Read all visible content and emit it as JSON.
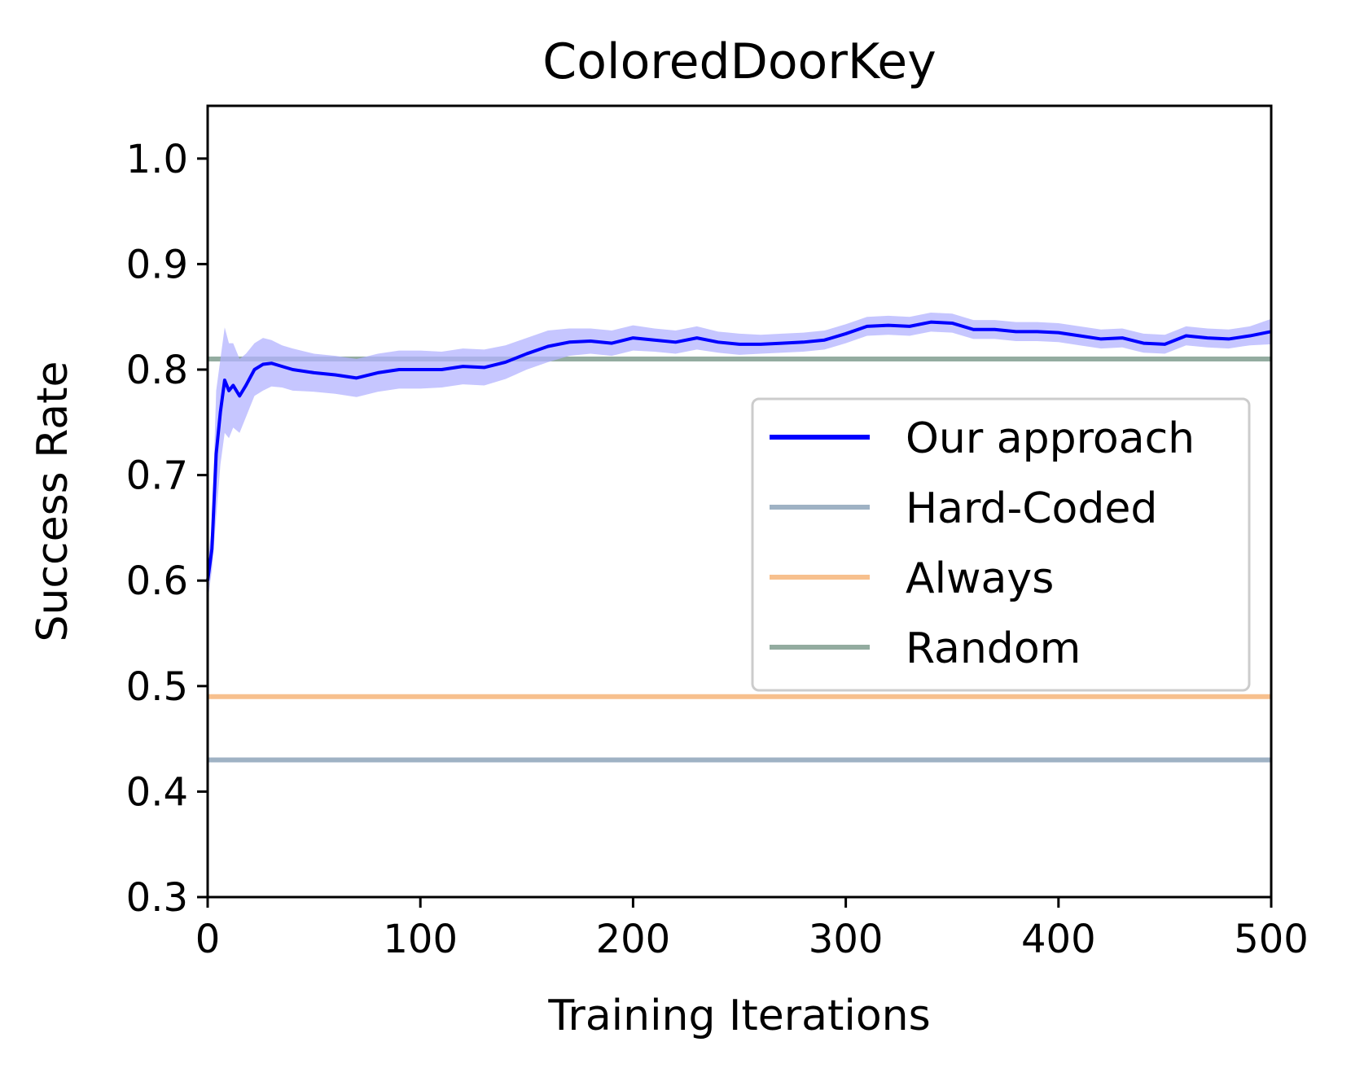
{
  "chart_data": {
    "type": "line",
    "title": "ColoredDoorKey",
    "xlabel": "Training Iterations",
    "ylabel": "Success Rate",
    "xlim": [
      0,
      500
    ],
    "ylim": [
      0.3,
      1.05
    ],
    "xticks": [
      0,
      100,
      200,
      300,
      400,
      500
    ],
    "xtick_labels": [
      "0",
      "100",
      "200",
      "300",
      "400",
      "500"
    ],
    "yticks": [
      0.3,
      0.4,
      0.5,
      0.6,
      0.7,
      0.8,
      0.9,
      1.0
    ],
    "ytick_labels": [
      "0.3",
      "0.4",
      "0.5",
      "0.6",
      "0.7",
      "0.8",
      "0.9",
      "1.0"
    ],
    "grid": false,
    "legend_position": "center-right",
    "series": [
      {
        "name": "Our approach",
        "color": "#0000ff",
        "band_color": "#b3b3ff",
        "x": [
          0,
          2,
          4,
          6,
          8,
          10,
          12,
          15,
          18,
          22,
          26,
          30,
          35,
          40,
          50,
          60,
          70,
          80,
          90,
          100,
          110,
          120,
          130,
          140,
          150,
          160,
          170,
          180,
          190,
          200,
          210,
          220,
          230,
          240,
          250,
          260,
          270,
          280,
          290,
          300,
          310,
          320,
          330,
          340,
          350,
          360,
          370,
          380,
          390,
          400,
          410,
          420,
          430,
          440,
          450,
          460,
          470,
          480,
          490,
          500
        ],
        "y": [
          0.6,
          0.63,
          0.72,
          0.76,
          0.79,
          0.78,
          0.785,
          0.775,
          0.785,
          0.8,
          0.805,
          0.806,
          0.803,
          0.8,
          0.797,
          0.795,
          0.792,
          0.797,
          0.8,
          0.8,
          0.8,
          0.803,
          0.802,
          0.807,
          0.815,
          0.822,
          0.826,
          0.827,
          0.825,
          0.83,
          0.828,
          0.826,
          0.83,
          0.826,
          0.824,
          0.824,
          0.825,
          0.826,
          0.828,
          0.834,
          0.841,
          0.842,
          0.841,
          0.845,
          0.844,
          0.838,
          0.838,
          0.836,
          0.836,
          0.835,
          0.832,
          0.829,
          0.83,
          0.825,
          0.824,
          0.832,
          0.83,
          0.829,
          0.832,
          0.836
        ],
        "spread": [
          0.02,
          0.02,
          0.06,
          0.05,
          0.05,
          0.045,
          0.04,
          0.035,
          0.03,
          0.025,
          0.025,
          0.022,
          0.02,
          0.02,
          0.018,
          0.018,
          0.018,
          0.018,
          0.018,
          0.018,
          0.017,
          0.017,
          0.017,
          0.016,
          0.015,
          0.015,
          0.013,
          0.012,
          0.012,
          0.012,
          0.011,
          0.011,
          0.011,
          0.01,
          0.01,
          0.009,
          0.009,
          0.009,
          0.009,
          0.009,
          0.009,
          0.009,
          0.009,
          0.009,
          0.009,
          0.009,
          0.009,
          0.009,
          0.009,
          0.009,
          0.009,
          0.009,
          0.009,
          0.009,
          0.009,
          0.009,
          0.009,
          0.009,
          0.009,
          0.012
        ]
      },
      {
        "name": "Hard-Coded",
        "color": "#9fb2c4",
        "constant": 0.43
      },
      {
        "name": "Always",
        "color": "#f7c08e",
        "constant": 0.49
      },
      {
        "name": "Random",
        "color": "#93aca0",
        "constant": 0.81
      }
    ]
  }
}
